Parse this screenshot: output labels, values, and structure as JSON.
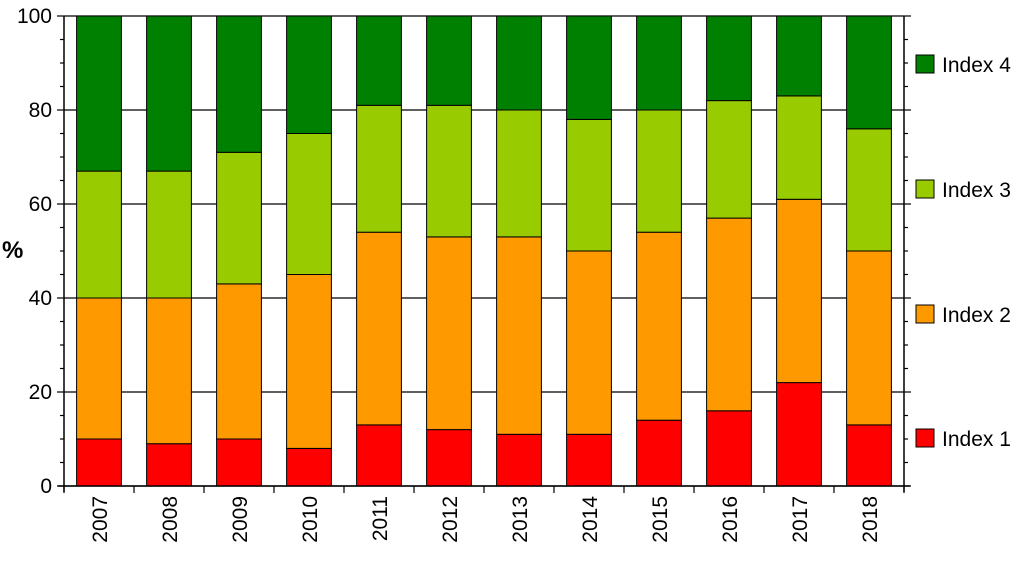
{
  "chart_data": {
    "type": "bar",
    "stacked": true,
    "title": "",
    "xlabel": "",
    "ylabel": "%",
    "ylim": [
      0,
      100
    ],
    "yticks": [
      0,
      20,
      40,
      60,
      80,
      100
    ],
    "grid": true,
    "legend_position": "right",
    "categories": [
      "2007",
      "2008",
      "2009",
      "2010",
      "2011",
      "2012",
      "2013",
      "2014",
      "2015",
      "2016",
      "2017",
      "2018"
    ],
    "series": [
      {
        "name": "Index 1",
        "color": "#ff0000",
        "values": [
          10,
          9,
          10,
          8,
          13,
          12,
          11,
          11,
          14,
          16,
          22,
          13
        ]
      },
      {
        "name": "Index 2",
        "color": "#ff9900",
        "values": [
          30,
          31,
          33,
          37,
          41,
          41,
          42,
          39,
          40,
          41,
          39,
          37
        ]
      },
      {
        "name": "Index 3",
        "color": "#99cc00",
        "values": [
          27,
          27,
          28,
          30,
          27,
          28,
          27,
          28,
          26,
          25,
          22,
          26
        ]
      },
      {
        "name": "Index 4",
        "color": "#008000",
        "values": [
          33,
          33,
          29,
          25,
          19,
          19,
          20,
          22,
          20,
          18,
          17,
          24
        ]
      }
    ]
  }
}
